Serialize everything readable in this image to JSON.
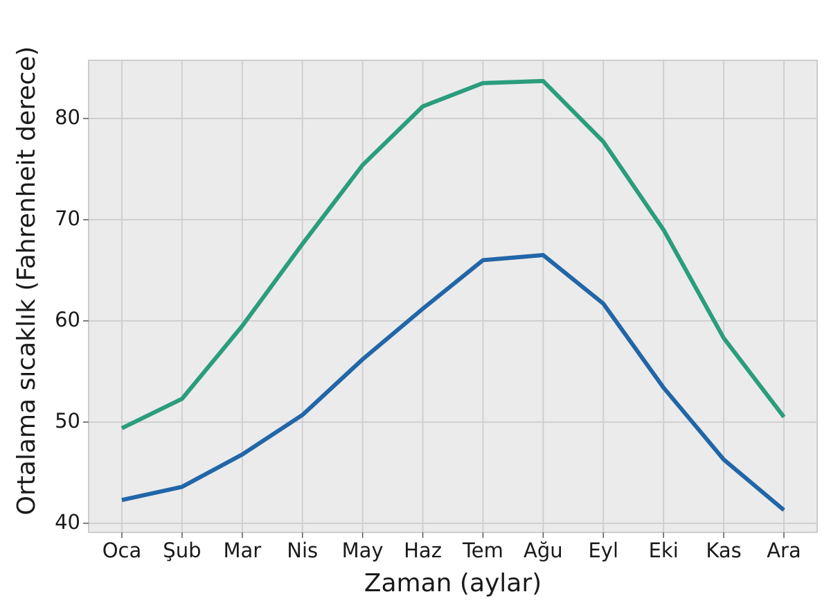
{
  "chart_data": {
    "type": "line",
    "x_label": "Zaman (aylar)",
    "y_label": "Ortalama sıcaklık (Fahrenheit derece)",
    "categories": [
      "Oca",
      "Şub",
      "Mar",
      "Nis",
      "May",
      "Haz",
      "Tem",
      "Ağu",
      "Eyl",
      "Eki",
      "Kas",
      "Ara"
    ],
    "series": [
      {
        "color": "#2a9d7c",
        "values": [
          49.4,
          52.3,
          59.5,
          67.6,
          75.4,
          81.2,
          83.5,
          83.7,
          77.7,
          69.0,
          58.3,
          50.5
        ]
      },
      {
        "color": "#2166a8",
        "values": [
          42.3,
          43.6,
          46.8,
          50.7,
          56.2,
          61.2,
          66.0,
          66.5,
          61.7,
          53.4,
          46.3,
          41.3
        ]
      }
    ],
    "ylim": [
      39.1,
      85.75
    ],
    "yticks": [
      40,
      50,
      60,
      70,
      80
    ],
    "grid": true
  }
}
